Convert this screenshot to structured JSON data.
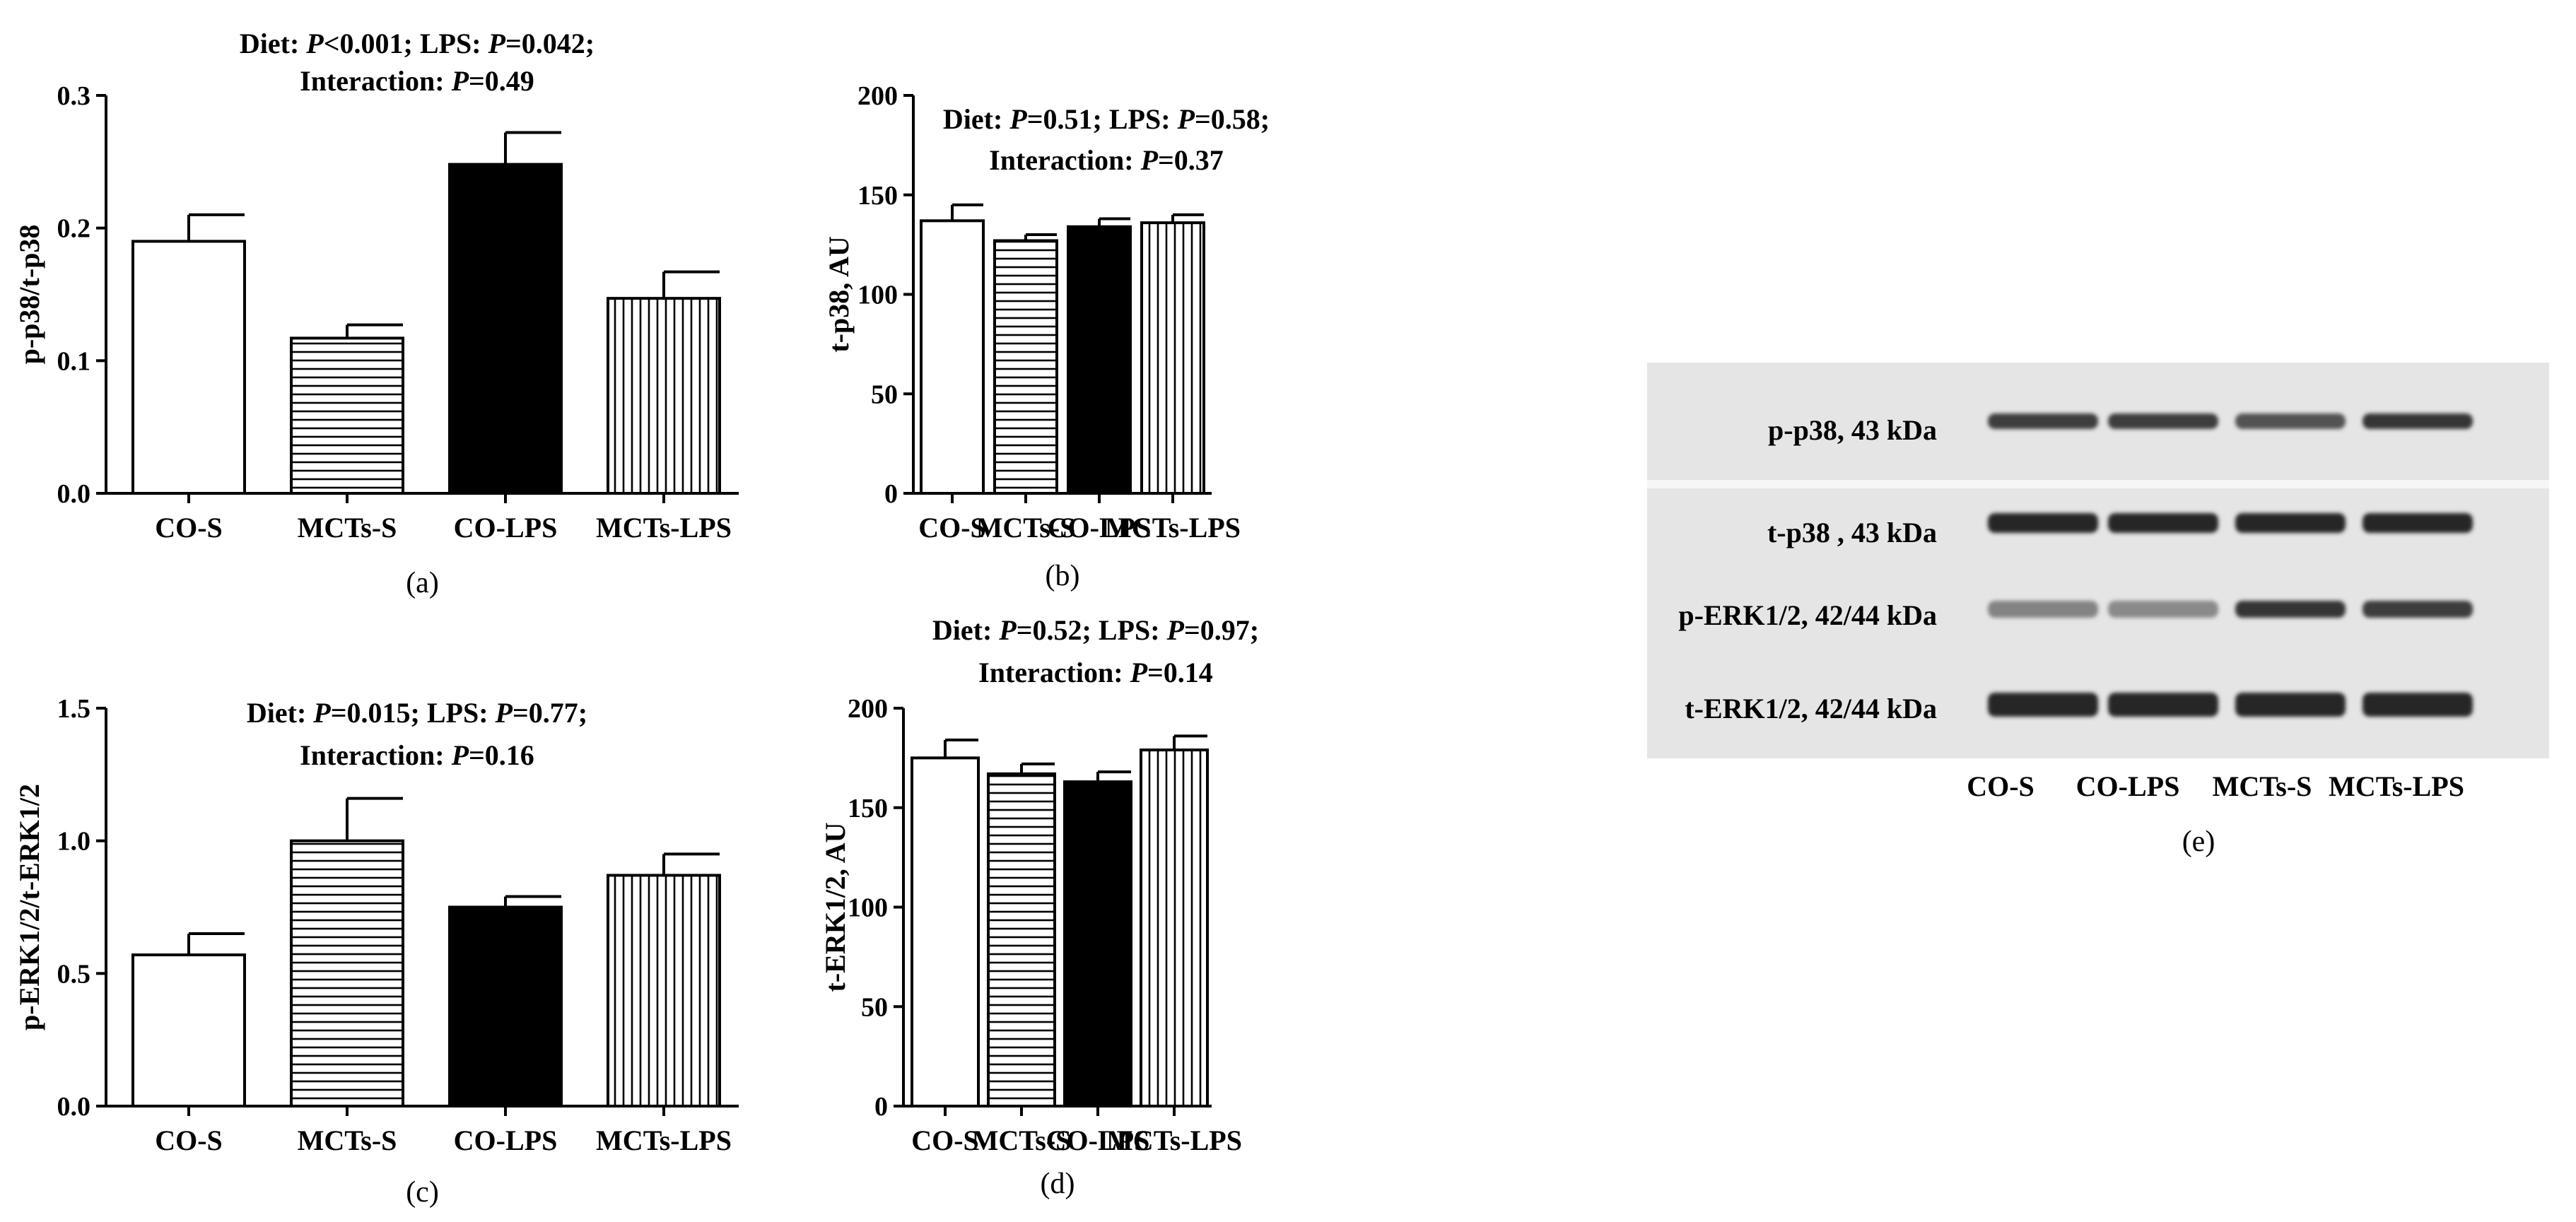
{
  "chart_data": [
    {
      "panel": "(a)",
      "type": "bar",
      "title_lines": [
        [
          {
            "t": "Diet: "
          },
          {
            "t": "P",
            "i": true
          },
          {
            "t": "<0.001; LPS: "
          },
          {
            "t": "P",
            "i": true
          },
          {
            "t": "=0.042;"
          }
        ],
        [
          {
            "t": "Interaction: "
          },
          {
            "t": "P",
            "i": true
          },
          {
            "t": "=0.49"
          }
        ]
      ],
      "ylabel": "p-p38/t-p38",
      "xlabel": "",
      "categories": [
        "CO-S",
        "MCTs-S",
        "CO-LPS",
        "MCTs-LPS"
      ],
      "values": [
        0.19,
        0.117,
        0.248,
        0.147
      ],
      "errors": [
        0.02,
        0.01,
        0.024,
        0.02
      ],
      "fills": [
        "white",
        "hstripe",
        "black",
        "vstripe"
      ],
      "ylim": [
        0,
        0.3
      ],
      "yticks": [
        0.0,
        0.1,
        0.2,
        0.3
      ],
      "ytick_labels": [
        "0.0",
        "0.1",
        "0.2",
        "0.3"
      ]
    },
    {
      "panel": "(b)",
      "type": "bar",
      "title_lines": [
        [
          {
            "t": "Diet: "
          },
          {
            "t": "P",
            "i": true
          },
          {
            "t": "=0.51; LPS: "
          },
          {
            "t": "P",
            "i": true
          },
          {
            "t": "=0.58;"
          }
        ],
        [
          {
            "t": "Interaction: "
          },
          {
            "t": "P",
            "i": true
          },
          {
            "t": "=0.37"
          }
        ]
      ],
      "ylabel": "t-p38, AU",
      "xlabel": "",
      "categories": [
        "CO-S",
        "MCTs-S",
        "CO-LPS",
        "MCTs-LPS"
      ],
      "values": [
        137,
        127,
        134,
        136
      ],
      "errors": [
        8,
        3,
        4,
        4
      ],
      "fills": [
        "white",
        "hstripe",
        "black",
        "vstripe"
      ],
      "ylim": [
        0,
        200
      ],
      "yticks": [
        0,
        50,
        100,
        150,
        200
      ],
      "ytick_labels": [
        "0",
        "50",
        "100",
        "150",
        "200"
      ]
    },
    {
      "panel": "(c)",
      "type": "bar",
      "title_lines": [
        [
          {
            "t": "Diet: "
          },
          {
            "t": "P",
            "i": true
          },
          {
            "t": "=0.015; LPS: "
          },
          {
            "t": "P",
            "i": true
          },
          {
            "t": "=0.77;"
          }
        ],
        [
          {
            "t": "Interaction: "
          },
          {
            "t": "P",
            "i": true
          },
          {
            "t": "=0.16"
          }
        ]
      ],
      "ylabel": "p-ERK1/2/t-ERK1/2",
      "xlabel": "",
      "categories": [
        "CO-S",
        "MCTs-S",
        "CO-LPS",
        "MCTs-LPS"
      ],
      "values": [
        0.57,
        1.0,
        0.75,
        0.87
      ],
      "errors": [
        0.08,
        0.16,
        0.04,
        0.08
      ],
      "fills": [
        "white",
        "hstripe",
        "black",
        "vstripe"
      ],
      "ylim": [
        0,
        1.5
      ],
      "yticks": [
        0.0,
        0.5,
        1.0,
        1.5
      ],
      "ytick_labels": [
        "0.0",
        "0.5",
        "1.0",
        "1.5"
      ]
    },
    {
      "panel": "(d)",
      "type": "bar",
      "title_lines": [
        [
          {
            "t": "Diet: "
          },
          {
            "t": "P",
            "i": true
          },
          {
            "t": "=0.52; LPS: "
          },
          {
            "t": "P",
            "i": true
          },
          {
            "t": "=0.97;"
          }
        ],
        [
          {
            "t": "Interaction: "
          },
          {
            "t": "P",
            "i": true
          },
          {
            "t": "=0.14"
          }
        ]
      ],
      "ylabel": "t-ERK1/2, AU",
      "xlabel": "",
      "categories": [
        "CO-S",
        "MCTs-S",
        "CO-LPS",
        "MCTs-LPS"
      ],
      "values": [
        175,
        167,
        163,
        179
      ],
      "errors": [
        9,
        5,
        5,
        7
      ],
      "fills": [
        "white",
        "hstripe",
        "black",
        "vstripe"
      ],
      "ylim": [
        0,
        200
      ],
      "yticks": [
        0,
        50,
        100,
        150,
        200
      ],
      "ytick_labels": [
        "0",
        "50",
        "100",
        "150",
        "200"
      ]
    }
  ],
  "blot": {
    "panel": "(e)",
    "row_labels": [
      "p-p38, 43 kDa",
      "t-p38 , 43 kDa",
      "p-ERK1/2, 42/44 kDa",
      "t-ERK1/2, 42/44 kDa"
    ],
    "lane_labels": [
      "CO-S",
      "CO-LPS",
      "MCTs-S",
      "MCTs-LPS"
    ],
    "band_intensity": [
      [
        0.85,
        0.85,
        0.7,
        0.9
      ],
      [
        1.0,
        1.0,
        1.0,
        1.0
      ],
      [
        0.35,
        0.3,
        0.9,
        0.85
      ],
      [
        1.0,
        1.0,
        1.0,
        1.0
      ]
    ]
  }
}
